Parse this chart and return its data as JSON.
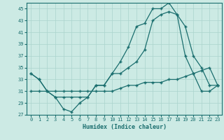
{
  "xlabel": "Humidex (Indice chaleur)",
  "bg_color": "#cceae4",
  "grid_color": "#aad4cc",
  "line_color": "#1a6e6e",
  "xlim": [
    -0.5,
    23.5
  ],
  "ylim": [
    27,
    46
  ],
  "yticks": [
    27,
    29,
    31,
    33,
    35,
    37,
    39,
    41,
    43,
    45
  ],
  "xticks": [
    0,
    1,
    2,
    3,
    4,
    5,
    6,
    7,
    8,
    9,
    10,
    11,
    12,
    13,
    14,
    15,
    16,
    17,
    18,
    19,
    20,
    21,
    22,
    23
  ],
  "line1_x": [
    0,
    1,
    2,
    3,
    4,
    5,
    6,
    7,
    8,
    9,
    10,
    11,
    12,
    13,
    14,
    15,
    16,
    17,
    18,
    19,
    20,
    21,
    22,
    23
  ],
  "line1_y": [
    34,
    33,
    31,
    30,
    28,
    27.5,
    29,
    30,
    32,
    32,
    34,
    36,
    38.5,
    42,
    42.5,
    45,
    45,
    46,
    44,
    42,
    37,
    35,
    32,
    32
  ],
  "line2_x": [
    0,
    1,
    2,
    3,
    4,
    5,
    6,
    7,
    8,
    9,
    10,
    11,
    12,
    13,
    14,
    15,
    16,
    17,
    18,
    19,
    20,
    21,
    22,
    23
  ],
  "line2_y": [
    34,
    33,
    31,
    30,
    30,
    30,
    30,
    30,
    32,
    32,
    34,
    34,
    35,
    36,
    38,
    43,
    44,
    44.5,
    44,
    37,
    34,
    31,
    31,
    32
  ],
  "line3_x": [
    0,
    1,
    2,
    3,
    4,
    5,
    6,
    7,
    8,
    9,
    10,
    11,
    12,
    13,
    14,
    15,
    16,
    17,
    18,
    19,
    20,
    21,
    22,
    23
  ],
  "line3_y": [
    31,
    31,
    31,
    31,
    31,
    31,
    31,
    31,
    31,
    31,
    31,
    31.5,
    32,
    32,
    32.5,
    32.5,
    32.5,
    33,
    33,
    33.5,
    34,
    34.5,
    35,
    32
  ]
}
